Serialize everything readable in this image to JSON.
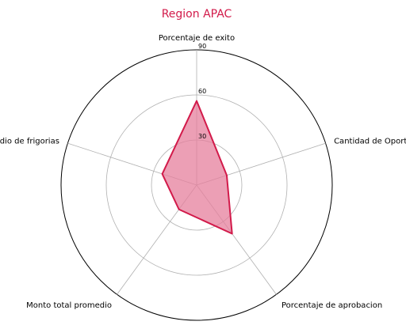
{
  "chart_data": {
    "type": "radar",
    "title": "Region APAC",
    "axes": [
      "Porcentaje de exito",
      "Cantidad de Oportunidades",
      "Porcentaje de aprobacion",
      "Monto total promedio",
      "Promedio de frigorias"
    ],
    "series": [
      {
        "values": [
          56,
          21,
          40,
          20,
          24
        ]
      }
    ],
    "rlim": [
      0,
      90
    ],
    "rticks": [
      30,
      60,
      90
    ],
    "grid": true,
    "legend": "none",
    "colors": {
      "title": "#d21a4a",
      "line": "#d21a4a",
      "fill": "#e57f9c",
      "grid": "#b0b0b0",
      "outer": "#000000"
    }
  }
}
